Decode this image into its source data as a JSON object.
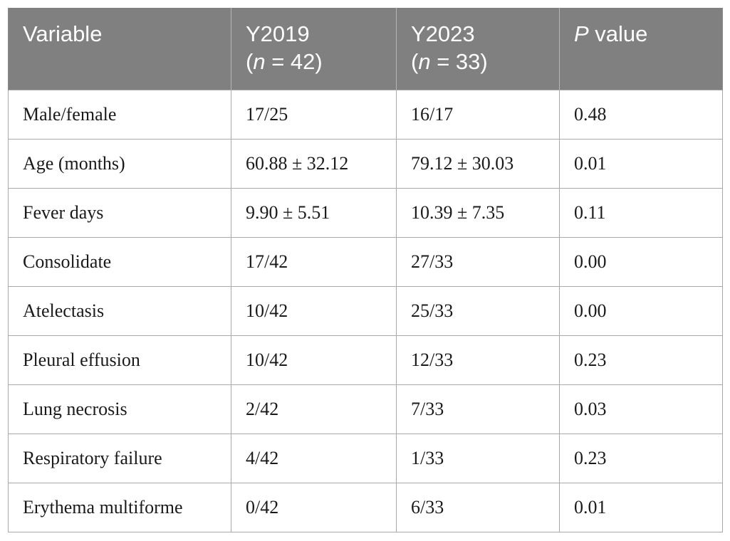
{
  "table": {
    "header": {
      "variable": "Variable",
      "y2019_label": "Y2019",
      "y2019_n_symbol": "n",
      "y2019_n_value": " = 42)",
      "y2023_label": "Y2023",
      "y2023_n_symbol": "n",
      "y2023_n_value": " = 33)",
      "p_symbol": "P",
      "p_text": " value"
    },
    "rows": [
      {
        "variable": "Male/female",
        "y2019": "17/25",
        "y2023": "16/17",
        "p": "0.48"
      },
      {
        "variable": "Age (months)",
        "y2019": "60.88 ± 32.12",
        "y2023": "79.12 ± 30.03",
        "p": "0.01"
      },
      {
        "variable": "Fever days",
        "y2019": "9.90 ± 5.51",
        "y2023": "10.39 ± 7.35",
        "p": "0.11"
      },
      {
        "variable": "Consolidate",
        "y2019": "17/42",
        "y2023": "27/33",
        "p": "0.00"
      },
      {
        "variable": "Atelectasis",
        "y2019": "10/42",
        "y2023": "25/33",
        "p": "0.00"
      },
      {
        "variable": "Pleural effusion",
        "y2019": "10/42",
        "y2023": "12/33",
        "p": "0.23"
      },
      {
        "variable": "Lung necrosis",
        "y2019": "2/42",
        "y2023": "7/33",
        "p": "0.03"
      },
      {
        "variable": "Respiratory failure",
        "y2019": "4/42",
        "y2023": "1/33",
        "p": "0.23"
      },
      {
        "variable": "Erythema multiforme",
        "y2019": "0/42",
        "y2023": "6/33",
        "p": "0.01"
      }
    ]
  }
}
